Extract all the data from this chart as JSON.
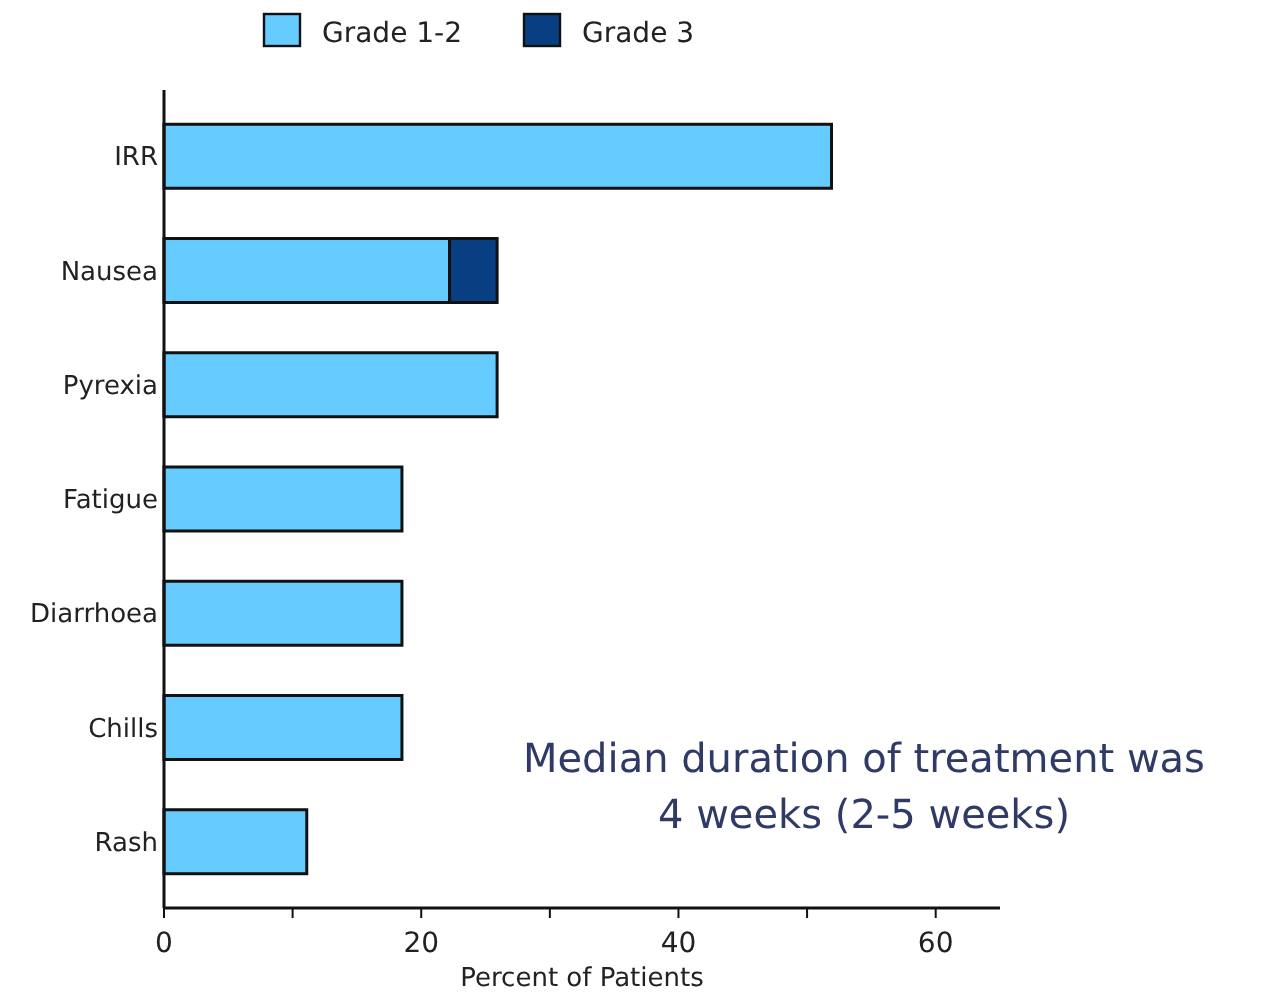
{
  "chart_data": {
    "type": "bar",
    "orientation": "horizontal",
    "stacked": true,
    "categories": [
      "IRR",
      "Nausea",
      "Pyrexia",
      "Fatigue",
      "Diarrhoea",
      "Chills",
      "Rash"
    ],
    "series": [
      {
        "name": "Grade 1-2",
        "color": "#66ccff",
        "values": [
          51.9,
          22.2,
          25.9,
          18.5,
          18.5,
          18.5,
          11.1
        ]
      },
      {
        "name": "Grade 3",
        "color": "#083f82",
        "values": [
          0,
          3.7,
          0,
          0,
          0,
          0,
          0
        ]
      }
    ],
    "xlabel": "Percent of Patients",
    "xlim": [
      0,
      65
    ],
    "xticks": [
      0,
      {
        "value": 10,
        "label": null
      },
      20,
      {
        "value": 30,
        "label": null
      },
      40,
      {
        "value": 50,
        "label": null
      },
      60
    ],
    "legend": "top",
    "grid": false,
    "annotations": [
      "Median duration of treatment was\n4 weeks (2-5 weeks)"
    ]
  }
}
